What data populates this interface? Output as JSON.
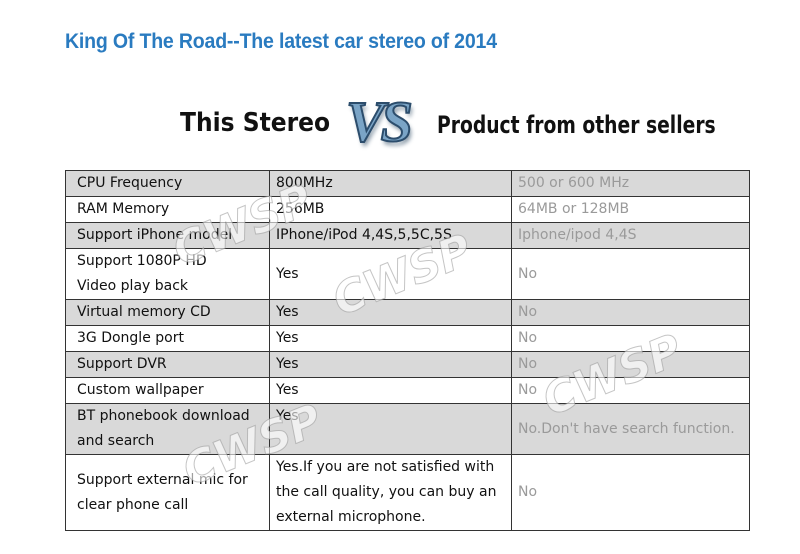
{
  "header": {
    "title": "King Of The Road--The latest car stereo of 2014"
  },
  "comparison": {
    "left": "This Stereo",
    "vs": "VS",
    "right": "Product from other sellers"
  },
  "watermark": "CWSP",
  "table": {
    "rows": [
      [
        "CPU Frequency",
        "800MHz",
        "500 or 600 MHz"
      ],
      [
        "RAM Memory",
        "256MB",
        "64MB or 128MB"
      ],
      [
        "Support iPhone model",
        "IPhone/iPod 4,4S,5,5C,5S",
        "Iphone/ipod 4,4S"
      ],
      [
        "Support 1080P HD\nVideo play back",
        "Yes",
        "No"
      ],
      [
        "Virtual memory CD",
        "Yes",
        "No"
      ],
      [
        "3G Dongle port",
        "Yes",
        "No"
      ],
      [
        "Support DVR",
        "Yes",
        "No"
      ],
      [
        "Custom wallpaper",
        "Yes",
        "No"
      ],
      [
        "BT phonebook download\nand search",
        "Yes",
        "No.Don't have search function."
      ],
      [
        "Support external mic for\nclear phone call",
        "Yes.If you are not satisfied with\nthe call quality, you can buy an\nexternal microphone.",
        "No"
      ]
    ]
  }
}
